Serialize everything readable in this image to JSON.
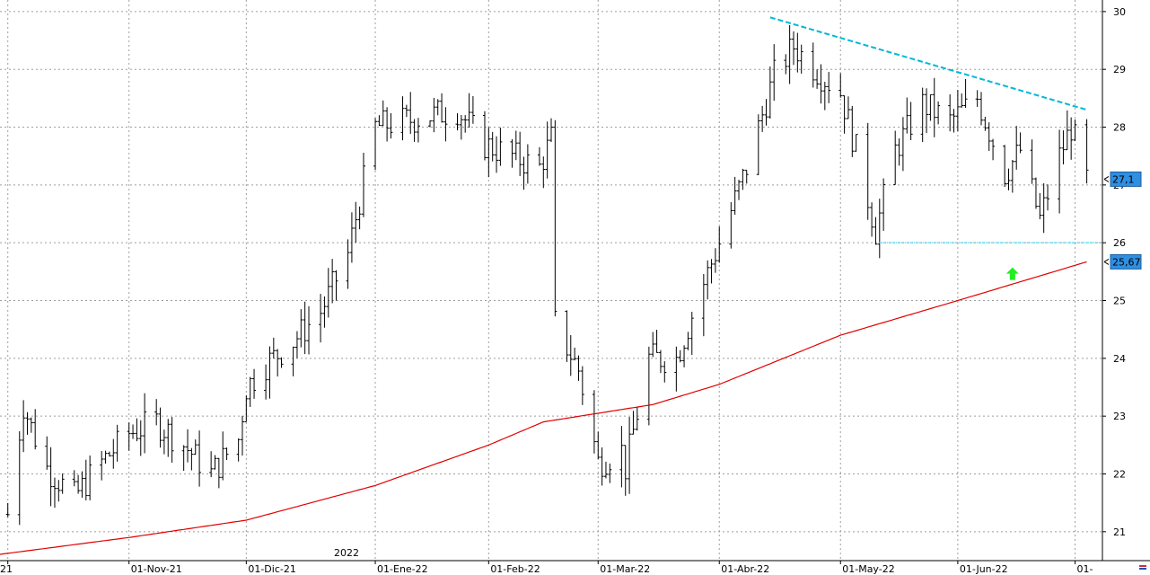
{
  "chart_data": {
    "type": "ohlc",
    "year_label": "2022",
    "ylim": [
      20.5,
      30.2
    ],
    "y_ticks": [
      "21",
      "22",
      "23",
      "24",
      "25",
      "26",
      "27",
      "28",
      "29",
      "30"
    ],
    "x_ticks": [
      {
        "label": "21",
        "date": "2021-10-01"
      },
      {
        "label": "01-Nov-21",
        "date": "2021-11-01"
      },
      {
        "label": "01-Dic-21",
        "date": "2021-12-01"
      },
      {
        "label": "01-Ene-22",
        "date": "2022-01-03"
      },
      {
        "label": "01-Feb-22",
        "date": "2022-02-01"
      },
      {
        "label": "01-Mar-22",
        "date": "2022-03-01"
      },
      {
        "label": "01-Abr-22",
        "date": "2022-04-01"
      },
      {
        "label": "01-May-22",
        "date": "2022-05-02"
      },
      {
        "label": "01-Jun-22",
        "date": "2022-06-01"
      },
      {
        "label": "01-",
        "date": "2022-07-01"
      }
    ],
    "price_labels": [
      {
        "text": "27,1",
        "value": 27.1,
        "color": "#2f8fe0"
      },
      {
        "text": "25,67",
        "value": 25.67,
        "color": "#2f8fe0"
      }
    ],
    "anchors": [
      [
        "2021-10-01",
        21.3
      ],
      [
        "2021-10-05",
        23.2
      ],
      [
        "2021-10-07",
        22.8
      ],
      [
        "2021-10-11",
        22.1
      ],
      [
        "2021-10-18",
        21.6
      ],
      [
        "2021-10-25",
        22.2
      ],
      [
        "2021-11-01",
        22.7
      ],
      [
        "2021-11-08",
        22.9
      ],
      [
        "2021-11-15",
        22.5
      ],
      [
        "2021-11-22",
        22.0
      ],
      [
        "2021-11-29",
        22.6
      ],
      [
        "2021-12-01",
        23.5
      ],
      [
        "2021-12-06",
        23.9
      ],
      [
        "2021-12-13",
        24.3
      ],
      [
        "2021-12-20",
        24.8
      ],
      [
        "2021-12-27",
        25.8
      ],
      [
        "2022-01-03",
        28.0
      ],
      [
        "2022-01-10",
        28.1
      ],
      [
        "2022-01-17",
        28.2
      ],
      [
        "2022-01-24",
        28.3
      ],
      [
        "2022-01-31",
        27.7
      ],
      [
        "2022-02-07",
        27.5
      ],
      [
        "2022-02-14",
        27.3
      ],
      [
        "2022-02-17",
        27.8
      ],
      [
        "2022-02-18",
        24.6
      ],
      [
        "2022-02-24",
        23.8
      ],
      [
        "2022-03-01",
        22.2
      ],
      [
        "2022-03-07",
        22.4
      ],
      [
        "2022-03-08",
        22.1
      ],
      [
        "2022-03-14",
        24.0
      ],
      [
        "2022-03-21",
        24.0
      ],
      [
        "2022-03-28",
        25.3
      ],
      [
        "2022-04-01",
        26.0
      ],
      [
        "2022-04-08",
        27.3
      ],
      [
        "2022-04-15",
        28.9
      ],
      [
        "2022-04-20",
        29.4
      ],
      [
        "2022-04-27",
        28.9
      ],
      [
        "2022-05-02",
        28.6
      ],
      [
        "2022-05-06",
        27.6
      ],
      [
        "2022-05-11",
        26.2
      ],
      [
        "2022-05-16",
        27.6
      ],
      [
        "2022-05-23",
        28.4
      ],
      [
        "2022-05-30",
        28.1
      ],
      [
        "2022-06-06",
        28.5
      ],
      [
        "2022-06-13",
        27.2
      ],
      [
        "2022-06-17",
        27.6
      ],
      [
        "2022-06-22",
        26.4
      ],
      [
        "2022-06-27",
        27.5
      ],
      [
        "2022-06-30",
        28.0
      ],
      [
        "2022-07-04",
        27.1
      ]
    ],
    "ma200": [
      [
        "2021-09-28",
        20.6
      ],
      [
        "2021-11-01",
        20.9
      ],
      [
        "2021-12-01",
        21.2
      ],
      [
        "2022-01-03",
        21.8
      ],
      [
        "2022-02-01",
        22.5
      ],
      [
        "2022-02-15",
        22.9
      ],
      [
        "2022-03-01",
        23.05
      ],
      [
        "2022-03-15",
        23.2
      ],
      [
        "2022-04-01",
        23.55
      ],
      [
        "2022-05-02",
        24.4
      ],
      [
        "2022-06-01",
        25.0
      ],
      [
        "2022-07-04",
        25.67
      ]
    ],
    "trendline": {
      "color": "#00b8d8",
      "points": [
        [
          "2022-04-14",
          29.9
        ],
        [
          "2022-07-04",
          28.3
        ]
      ]
    },
    "support_line": {
      "color": "#66e0f0",
      "value": 26.0,
      "from": "2022-05-12",
      "to": "2022-07-08"
    },
    "arrow": {
      "color": "#22ee22",
      "date": "2022-06-15",
      "value": 25.45,
      "direction": "up"
    },
    "colors": {
      "bars": "#000000",
      "ma": "#e00000",
      "grid": "#9e9e9e"
    }
  }
}
